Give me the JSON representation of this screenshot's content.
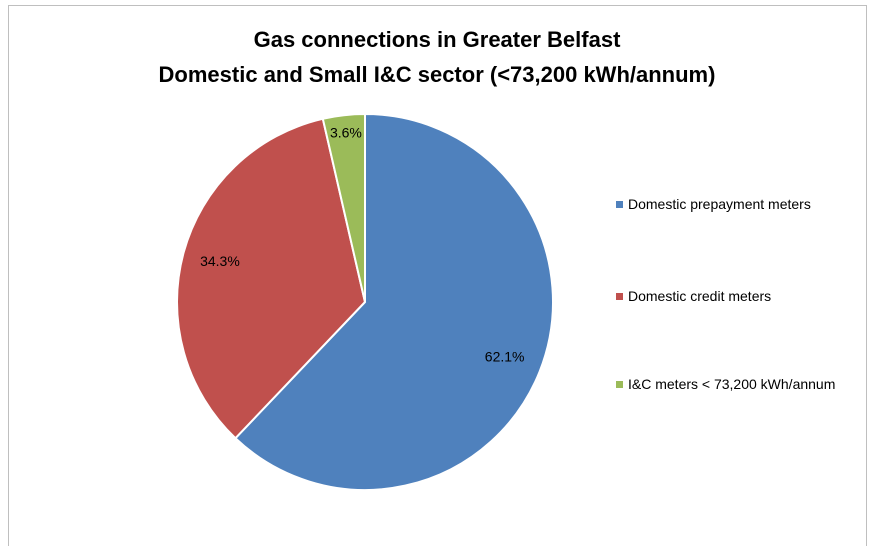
{
  "chart_data": {
    "type": "pie",
    "title": "Gas connections in Greater Belfast",
    "subtitle": "Domestic and Small I&C sector (<73,200 kWh/annum)",
    "categories": [
      "Domestic prepayment meters",
      "Domestic credit meters",
      "I&C meters < 73,200 kWh/annum"
    ],
    "values": [
      62.1,
      34.3,
      3.6
    ],
    "value_labels": [
      "62.1%",
      "34.3%",
      "3.6%"
    ],
    "colors": [
      "#4f81bd",
      "#c0504d",
      "#9bbb59"
    ],
    "legend": "right"
  }
}
